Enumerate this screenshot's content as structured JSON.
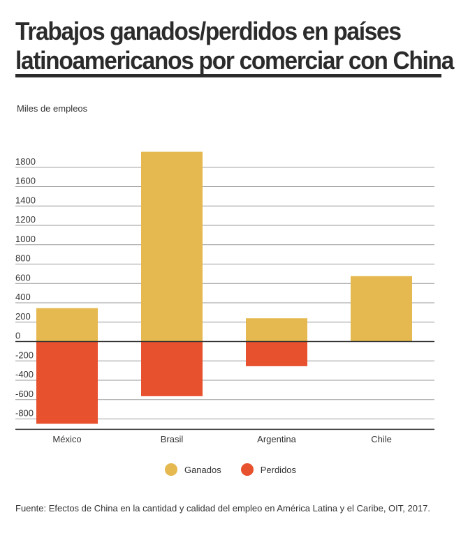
{
  "title": {
    "line1": "Trabajos ganados/perdidos en países",
    "line2": "latinoamericanos  por comerciar con China"
  },
  "source": "Fuente:  Efectos de China en la cantidad y calidad del empleo en América Latina y el Caribe, OIT, 2017.",
  "colors": {
    "ganados": "#e5b94f",
    "perdidos": "#e8512e",
    "grid": "#9a9a9a",
    "axis": "#333333"
  },
  "chart_data": {
    "type": "bar",
    "ylabel": "Miles de empleos",
    "xlabel": "",
    "categories": [
      "México",
      "Brasil",
      "Argentina",
      "Chile"
    ],
    "series": [
      {
        "name": "Ganados",
        "values": [
          345,
          1960,
          240,
          675
        ]
      },
      {
        "name": "Perdidos",
        "values": [
          -850,
          -565,
          -255,
          0
        ]
      }
    ],
    "ylim": [
      -900,
      2000
    ],
    "yticks": [
      -800,
      -600,
      -400,
      -200,
      0,
      200,
      400,
      600,
      800,
      1000,
      1200,
      1400,
      1600,
      1800
    ],
    "grid": true,
    "legend_position": "bottom-center"
  }
}
